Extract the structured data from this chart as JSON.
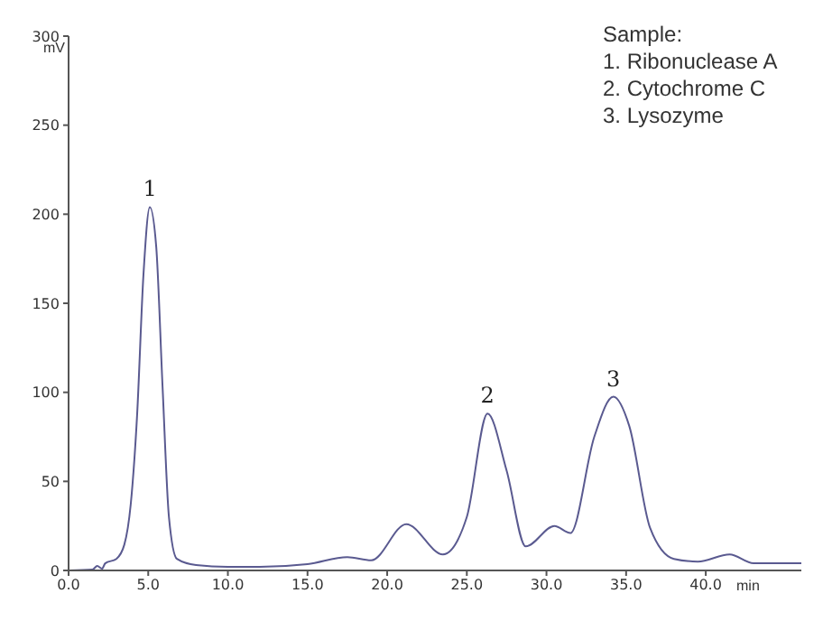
{
  "chart_data": {
    "type": "line",
    "xlabel": "min",
    "ylabel": "mV",
    "x": [
      0,
      1.5,
      1.8,
      2.1,
      2.3,
      3.0,
      3.5,
      3.9,
      4.3,
      4.7,
      5.1,
      5.5,
      5.9,
      6.3,
      6.8,
      8,
      10,
      12,
      15,
      17.5,
      19,
      21.2,
      23.5,
      25,
      26.3,
      27.5,
      28.7,
      30.5,
      31.5,
      33,
      34.2,
      35.2,
      36.5,
      38,
      39.5,
      41.5,
      43,
      46
    ],
    "series": [
      {
        "color": "#5a5a90",
        "values": [
          0,
          0.5,
          2.5,
          1,
          4,
          6.5,
          14.5,
          37,
          87,
          166,
          204,
          182,
          103,
          30,
          6.5,
          3,
          2,
          2,
          3.5,
          7.5,
          5.7,
          26,
          9,
          30,
          88,
          56,
          13.5,
          25,
          21,
          75,
          97.5,
          81,
          24,
          6.5,
          5,
          9,
          4,
          4
        ]
      }
    ],
    "xlim": [
      0,
      46
    ],
    "xticks": [
      {
        "value": 0,
        "label": "0.0"
      },
      {
        "value": 5,
        "label": "5.0"
      },
      {
        "value": 10,
        "label": "10.0"
      },
      {
        "value": 15,
        "label": "15.0"
      },
      {
        "value": 20,
        "label": "20.0"
      },
      {
        "value": 25,
        "label": "25.0"
      },
      {
        "value": 30,
        "label": "30.0"
      },
      {
        "value": 35,
        "label": "35.0"
      },
      {
        "value": 40,
        "label": "40.0"
      }
    ],
    "ylim": [
      0,
      300
    ],
    "yticks": [
      0,
      50,
      100,
      150,
      200,
      250,
      300
    ],
    "grid": false,
    "legend": false,
    "marker": "none",
    "line_style": "solid",
    "annotations": [
      {
        "text": "1",
        "x": 5.1,
        "y": 204
      },
      {
        "text": "2",
        "x": 26.3,
        "y": 88
      },
      {
        "text": "3",
        "x": 34.2,
        "y": 97.5
      },
      "Sample:",
      "1. Ribonuclease A",
      "2. Cytochrome C",
      "3. Lysozyme"
    ]
  }
}
